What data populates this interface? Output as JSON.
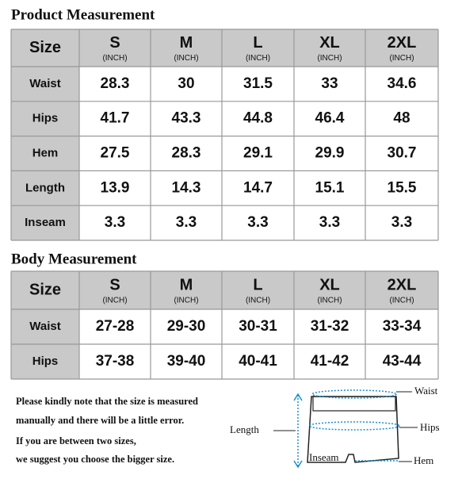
{
  "product_measurement": {
    "title": "Product Measurement",
    "header": {
      "label": "Size",
      "sizes": [
        {
          "size": "S",
          "unit": "(INCH)"
        },
        {
          "size": "M",
          "unit": "(INCH)"
        },
        {
          "size": "L",
          "unit": "(INCH)"
        },
        {
          "size": "XL",
          "unit": "(INCH)"
        },
        {
          "size": "2XL",
          "unit": "(INCH)"
        }
      ]
    },
    "rows": [
      {
        "label": "Waist",
        "values": [
          28.3,
          30,
          31.5,
          33,
          34.6
        ]
      },
      {
        "label": "Hips",
        "values": [
          41.7,
          43.3,
          44.8,
          46.4,
          48
        ]
      },
      {
        "label": "Hem",
        "values": [
          27.5,
          28.3,
          29.1,
          29.9,
          30.7
        ]
      },
      {
        "label": "Length",
        "values": [
          13.9,
          14.3,
          14.7,
          15.1,
          15.5
        ]
      },
      {
        "label": "Inseam",
        "values": [
          3.3,
          3.3,
          3.3,
          3.3,
          3.3
        ]
      }
    ]
  },
  "body_measurement": {
    "title": "Body Measurement",
    "header": {
      "label": "Size",
      "sizes": [
        {
          "size": "S",
          "unit": "(INCH)"
        },
        {
          "size": "M",
          "unit": "(INCH)"
        },
        {
          "size": "L",
          "unit": "(INCH)"
        },
        {
          "size": "XL",
          "unit": "(INCH)"
        },
        {
          "size": "2XL",
          "unit": "(INCH)"
        }
      ]
    },
    "rows": [
      {
        "label": "Waist",
        "values": [
          "27-28",
          "29-30",
          "30-31",
          "31-32",
          "33-34"
        ]
      },
      {
        "label": "Hips",
        "values": [
          "37-38",
          "39-40",
          "40-41",
          "41-42",
          "43-44"
        ]
      }
    ]
  },
  "notes": [
    "Please kindly note that the size is measured",
    "manually and there will be a little error.",
    "If you are between two sizes,",
    "we suggest you choose the bigger size."
  ],
  "diagram": {
    "labels": {
      "waist": "Waist",
      "hips": "Hips",
      "length": "Length",
      "inseam": "Inseam",
      "hem": "Hem"
    }
  }
}
